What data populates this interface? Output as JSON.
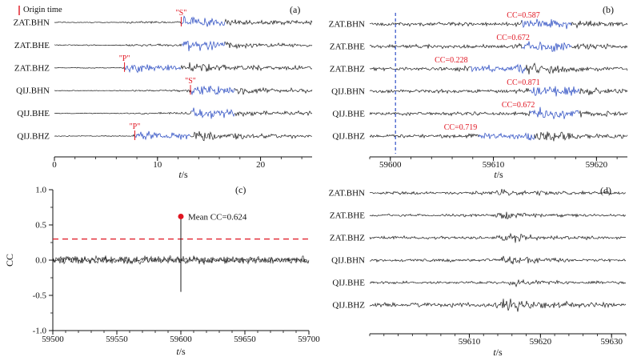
{
  "figure": {
    "background": "#ffffff",
    "colors": {
      "trace": "#1a1a1a",
      "template_blue": "#2547c0",
      "annotation_red": "#e01420",
      "pick_blue": "#3050c8",
      "axis": "#111111"
    }
  },
  "chart_data": [
    {
      "id": "a",
      "type": "line",
      "subtype": "seismic_waveform_stack",
      "panel_label": "(a)",
      "xlabel": "t/s",
      "xlim": [
        0,
        25
      ],
      "xticks": [
        {
          "v": 0,
          "label": "0"
        },
        {
          "v": 10,
          "label": "10"
        },
        {
          "v": 20,
          "label": "20"
        }
      ],
      "minor_tick_step": 2,
      "origin_annotation": {
        "label": "Origin time"
      },
      "traces": [
        {
          "label": "ZAT.BHN",
          "phase": {
            "text": "\"S\"",
            "t": 12.3
          },
          "template_window": [
            12.4,
            16.6
          ],
          "env": [
            [
              0,
              0.07
            ],
            [
              6.6,
              0.07
            ],
            [
              7,
              0.16
            ],
            [
              12.2,
              0.18
            ],
            [
              12.6,
              1
            ],
            [
              15.5,
              0.7
            ],
            [
              19,
              0.42
            ],
            [
              25,
              0.3
            ]
          ]
        },
        {
          "label": "ZAT.BHE",
          "template_window": [
            12.4,
            16.6
          ],
          "env": [
            [
              0,
              0.07
            ],
            [
              6.6,
              0.07
            ],
            [
              7,
              0.15
            ],
            [
              12.2,
              0.17
            ],
            [
              12.6,
              0.95
            ],
            [
              15.5,
              0.65
            ],
            [
              19,
              0.4
            ],
            [
              25,
              0.28
            ]
          ]
        },
        {
          "label": "ZAT.BHZ",
          "phase": {
            "text": "\"P\"",
            "t": 6.8
          },
          "template_window": [
            6.9,
            12.3
          ],
          "env": [
            [
              0,
              0.07
            ],
            [
              6.6,
              0.07
            ],
            [
              7.1,
              0.85
            ],
            [
              9.5,
              0.5
            ],
            [
              12.3,
              0.5
            ],
            [
              13,
              0.85
            ],
            [
              16,
              0.5
            ],
            [
              25,
              0.28
            ]
          ]
        },
        {
          "label": "QIJ.BHN",
          "phase": {
            "text": "\"S\"",
            "t": 13.2
          },
          "template_window": [
            13.3,
            17.5
          ],
          "env": [
            [
              0,
              0.07
            ],
            [
              7.6,
              0.07
            ],
            [
              8,
              0.16
            ],
            [
              13.1,
              0.18
            ],
            [
              13.5,
              1
            ],
            [
              16.5,
              0.7
            ],
            [
              20,
              0.42
            ],
            [
              25,
              0.3
            ]
          ]
        },
        {
          "label": "QIJ.BHE",
          "template_window": [
            13.3,
            17.5
          ],
          "env": [
            [
              0,
              0.07
            ],
            [
              7.6,
              0.07
            ],
            [
              8,
              0.15
            ],
            [
              13.1,
              0.17
            ],
            [
              13.5,
              0.95
            ],
            [
              16.5,
              0.65
            ],
            [
              20,
              0.4
            ],
            [
              25,
              0.28
            ]
          ]
        },
        {
          "label": "QIJ.BHZ",
          "phase": {
            "text": "\"P\"",
            "t": 7.8
          },
          "template_window": [
            7.9,
            13.2
          ],
          "env": [
            [
              0,
              0.07
            ],
            [
              7.6,
              0.07
            ],
            [
              8.1,
              0.85
            ],
            [
              10.5,
              0.5
            ],
            [
              13.2,
              0.5
            ],
            [
              14,
              0.85
            ],
            [
              17,
              0.5
            ],
            [
              25,
              0.28
            ]
          ]
        }
      ]
    },
    {
      "id": "b",
      "type": "line",
      "subtype": "seismic_waveform_stack",
      "panel_label": "(b)",
      "xlabel": "t/s",
      "xlim": [
        59598,
        59623
      ],
      "xticks": [
        {
          "v": 59600,
          "label": "59600"
        },
        {
          "v": 59610,
          "label": "59610"
        },
        {
          "v": 59620,
          "label": "59620"
        }
      ],
      "minor_tick_step": 2,
      "pick_line": {
        "t": 59600.5,
        "style": "dashed"
      },
      "traces": [
        {
          "label": "ZAT.BHN",
          "cc": "CC=0.587",
          "cc_t": 59611.3,
          "window": [
            59612.8,
            59617.6
          ],
          "env": [
            [
              59598,
              0.3
            ],
            [
              59611.8,
              0.32
            ],
            [
              59613.8,
              1
            ],
            [
              59616.5,
              0.85
            ],
            [
              59619,
              0.5
            ],
            [
              59623,
              0.36
            ]
          ]
        },
        {
          "label": "ZAT.BHE",
          "cc": "CC=0.672",
          "cc_t": 59610.3,
          "window": [
            59612.8,
            59617.6
          ],
          "env": [
            [
              59598,
              0.3
            ],
            [
              59611.8,
              0.32
            ],
            [
              59613.8,
              0.95
            ],
            [
              59616.5,
              0.8
            ],
            [
              59619,
              0.48
            ],
            [
              59623,
              0.36
            ]
          ]
        },
        {
          "label": "ZAT.BHZ",
          "cc": "CC=0.228",
          "cc_t": 59604.3,
          "window": [
            59607.8,
            59613.2
          ],
          "env": [
            [
              59598,
              0.3
            ],
            [
              59606,
              0.32
            ],
            [
              59608.5,
              0.65
            ],
            [
              59611,
              0.45
            ],
            [
              59613.8,
              1
            ],
            [
              59616.5,
              0.8
            ],
            [
              59619,
              0.5
            ],
            [
              59623,
              0.36
            ]
          ]
        },
        {
          "label": "QIJ.BHN",
          "cc": "CC=0.871",
          "cc_t": 59611.3,
          "window": [
            59613.6,
            59618.4
          ],
          "env": [
            [
              59598,
              0.3
            ],
            [
              59612.6,
              0.32
            ],
            [
              59614.6,
              1
            ],
            [
              59617.3,
              0.85
            ],
            [
              59620,
              0.5
            ],
            [
              59623,
              0.38
            ]
          ]
        },
        {
          "label": "QIJ.BHE",
          "cc": "CC=0.672",
          "cc_t": 59610.8,
          "window": [
            59613.6,
            59618.4
          ],
          "env": [
            [
              59598,
              0.3
            ],
            [
              59612.6,
              0.32
            ],
            [
              59614.6,
              0.92
            ],
            [
              59617.3,
              0.8
            ],
            [
              59620,
              0.48
            ],
            [
              59623,
              0.36
            ]
          ]
        },
        {
          "label": "QIJ.BHZ",
          "cc": "CC=0.719",
          "cc_t": 59605.2,
          "window": [
            59608.6,
            59614
          ],
          "env": [
            [
              59598,
              0.3
            ],
            [
              59606.8,
              0.32
            ],
            [
              59609.3,
              0.65
            ],
            [
              59611.8,
              0.45
            ],
            [
              59614.6,
              1
            ],
            [
              59617.3,
              0.8
            ],
            [
              59620,
              0.5
            ],
            [
              59623,
              0.36
            ]
          ]
        }
      ]
    },
    {
      "id": "c",
      "type": "line",
      "subtype": "cc_time_series",
      "panel_label": "(c)",
      "xlabel": "t/s",
      "ylabel": "CC",
      "xlim": [
        59500,
        59700
      ],
      "ylim": [
        -1,
        1
      ],
      "xticks": [
        {
          "v": 59500,
          "label": "59500"
        },
        {
          "v": 59550,
          "label": "59550"
        },
        {
          "v": 59600,
          "label": "59600"
        },
        {
          "v": 59650,
          "label": "59650"
        },
        {
          "v": 59700,
          "label": "59700"
        }
      ],
      "yticks": [
        {
          "v": -1,
          "label": "-1.0"
        },
        {
          "v": -0.5,
          "label": "-0.5"
        },
        {
          "v": 0,
          "label": "0.0"
        },
        {
          "v": 0.5,
          "label": "0.5"
        },
        {
          "v": 1,
          "label": "1.0"
        }
      ],
      "minor_tick_step": 10,
      "y_minor_tick_step": 0.25,
      "noise_amp": 0.065,
      "threshold": {
        "value": 0.3,
        "style": "dashed"
      },
      "detection": {
        "t": 59600,
        "peak_cc": 0.624,
        "marker_cc": 0.62,
        "label": "Mean CC=0.624",
        "negative_sidelobe": -0.45
      }
    },
    {
      "id": "d",
      "type": "line",
      "subtype": "seismic_waveform_stack",
      "panel_label": "(d)",
      "xlabel": "t/s",
      "xlim": [
        59596,
        59632
      ],
      "xticks": [
        {
          "v": 59610,
          "label": "59610"
        },
        {
          "v": 59620,
          "label": "59620"
        },
        {
          "v": 59630,
          "label": "59630"
        }
      ],
      "minor_tick_step": 2,
      "traces": [
        {
          "label": "ZAT.BHN",
          "amp": 8,
          "env": [
            [
              59596,
              0.3
            ],
            [
              59613,
              0.32
            ],
            [
              59615,
              1
            ],
            [
              59616.8,
              0.7
            ],
            [
              59619.5,
              0.42
            ],
            [
              59632,
              0.3
            ]
          ]
        },
        {
          "label": "ZAT.BHE",
          "amp": 7,
          "env": [
            [
              59596,
              0.32
            ],
            [
              59613,
              0.34
            ],
            [
              59615,
              0.95
            ],
            [
              59617,
              0.65
            ],
            [
              59620,
              0.42
            ],
            [
              59632,
              0.3
            ]
          ]
        },
        {
          "label": "ZAT.BHZ",
          "amp": 9,
          "env": [
            [
              59596,
              0.3
            ],
            [
              59613.5,
              0.3
            ],
            [
              59615.2,
              1.1
            ],
            [
              59617,
              0.7
            ],
            [
              59620,
              0.4
            ],
            [
              59632,
              0.28
            ]
          ]
        },
        {
          "label": "QIJ.BHN",
          "amp": 8,
          "env": [
            [
              59596,
              0.32
            ],
            [
              59613.5,
              0.34
            ],
            [
              59615.8,
              1
            ],
            [
              59618,
              0.7
            ],
            [
              59621,
              0.42
            ],
            [
              59632,
              0.3
            ]
          ]
        },
        {
          "label": "QIJ.BHE",
          "amp": 7,
          "env": [
            [
              59596,
              0.32
            ],
            [
              59614,
              0.34
            ],
            [
              59616,
              0.9
            ],
            [
              59618,
              0.65
            ],
            [
              59621,
              0.42
            ],
            [
              59632,
              0.3
            ]
          ]
        },
        {
          "label": "QIJ.BHZ",
          "amp": 12,
          "env": [
            [
              59596,
              0.3
            ],
            [
              59613,
              0.35
            ],
            [
              59615.5,
              1
            ],
            [
              59618.5,
              0.85
            ],
            [
              59621.5,
              0.5
            ],
            [
              59632,
              0.35
            ]
          ]
        }
      ]
    }
  ]
}
